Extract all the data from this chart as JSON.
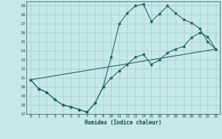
{
  "xlabel": "Humidex (Indice chaleur)",
  "bg_color": "#c8e8e8",
  "grid_color": "#a0c8c8",
  "line_color": "#1a6060",
  "xlim": [
    -0.5,
    23.5
  ],
  "ylim": [
    17,
    29.5
  ],
  "yticks": [
    17,
    18,
    19,
    20,
    21,
    22,
    23,
    24,
    25,
    26,
    27,
    28,
    29
  ],
  "xticks": [
    0,
    1,
    2,
    3,
    4,
    5,
    6,
    7,
    8,
    9,
    10,
    11,
    12,
    13,
    14,
    15,
    16,
    17,
    18,
    19,
    20,
    21,
    22,
    23
  ],
  "line1_x": [
    0,
    1,
    2,
    3,
    4,
    5,
    6,
    7,
    8,
    9,
    10,
    11,
    12,
    13,
    14,
    15,
    16,
    17,
    18,
    19,
    20,
    21,
    22,
    23
  ],
  "line1_y": [
    20.8,
    19.8,
    19.4,
    18.6,
    18.0,
    17.8,
    17.5,
    17.2,
    18.2,
    20.0,
    23.3,
    27.0,
    28.2,
    29.0,
    29.2,
    27.3,
    28.1,
    29.0,
    28.2,
    27.5,
    27.1,
    26.5,
    25.0,
    24.2
  ],
  "line2_x": [
    0,
    1,
    2,
    3,
    4,
    5,
    6,
    7,
    8,
    9,
    10,
    11,
    12,
    13,
    14,
    15,
    16,
    17,
    18,
    19,
    20,
    21,
    22,
    23
  ],
  "line2_y": [
    20.8,
    19.8,
    19.4,
    18.6,
    18.0,
    17.8,
    17.5,
    17.2,
    18.2,
    20.0,
    21.0,
    21.8,
    22.5,
    23.3,
    23.6,
    22.5,
    23.0,
    23.8,
    24.2,
    24.5,
    25.5,
    26.0,
    25.6,
    24.2
  ],
  "line3_x": [
    0,
    23
  ],
  "line3_y": [
    20.8,
    24.2
  ]
}
